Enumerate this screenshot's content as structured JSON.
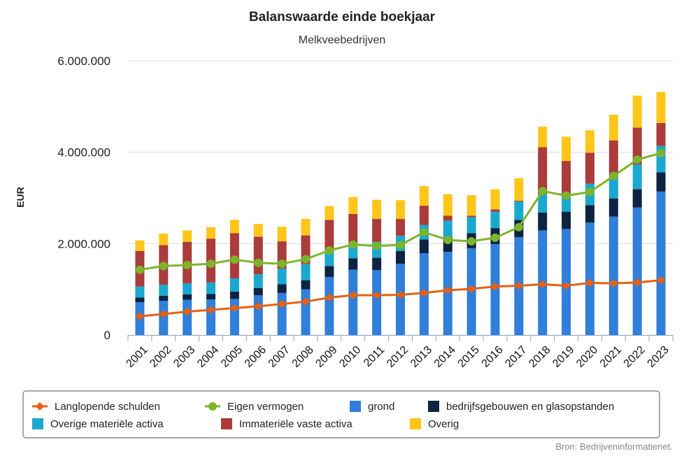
{
  "chart_data": {
    "type": "bar",
    "title": "Balanswaarde einde boekjaar",
    "subtitle": "Melkveebedrijven",
    "ylabel": "EUR",
    "xlabel": "",
    "ylim": [
      0,
      6000000
    ],
    "yticks": [
      0,
      2000000,
      4000000,
      6000000
    ],
    "ytick_labels": [
      "0",
      "2.000.000",
      "4.000.000",
      "6.000.000"
    ],
    "grid": true,
    "legend_position": "bottom",
    "categories": [
      "2001",
      "2002",
      "2003",
      "2004",
      "2005",
      "2006",
      "2007",
      "2008",
      "2009",
      "2010",
      "2011",
      "2012",
      "2013",
      "2014",
      "2015",
      "2016",
      "2017",
      "2018",
      "2019",
      "2020",
      "2021",
      "2022",
      "2023"
    ],
    "stacked_series": [
      {
        "name": "grond",
        "color": "#2f7fdb",
        "values": [
          720000,
          750000,
          770000,
          780000,
          790000,
          870000,
          920000,
          1000000,
          1270000,
          1430000,
          1420000,
          1560000,
          1790000,
          1820000,
          1900000,
          1990000,
          2140000,
          2290000,
          2320000,
          2460000,
          2590000,
          2790000,
          3140000
        ]
      },
      {
        "name": "bedrijfsgebouwen en glasopstanden",
        "color": "#0e2340",
        "values": [
          100000,
          110000,
          120000,
          120000,
          160000,
          160000,
          190000,
          200000,
          240000,
          250000,
          270000,
          280000,
          300000,
          320000,
          330000,
          350000,
          380000,
          390000,
          380000,
          380000,
          400000,
          400000,
          420000
        ]
      },
      {
        "name": "Overige materiële activa",
        "color": "#1aa8cf",
        "values": [
          240000,
          240000,
          240000,
          250000,
          290000,
          300000,
          340000,
          350000,
          330000,
          340000,
          350000,
          330000,
          320000,
          360000,
          350000,
          360000,
          400000,
          400000,
          400000,
          470000,
          460000,
          540000,
          580000
        ]
      },
      {
        "name": "Immateriële vaste activa",
        "color": "#aa3c3c",
        "values": [
          780000,
          870000,
          910000,
          960000,
          990000,
          820000,
          600000,
          630000,
          680000,
          630000,
          500000,
          370000,
          420000,
          110000,
          30000,
          50000,
          20000,
          1030000,
          710000,
          680000,
          810000,
          810000,
          500000
        ]
      },
      {
        "name": "Overig",
        "color": "#ffc61a",
        "values": [
          230000,
          250000,
          250000,
          250000,
          290000,
          280000,
          320000,
          360000,
          300000,
          370000,
          420000,
          410000,
          430000,
          470000,
          450000,
          440000,
          490000,
          450000,
          530000,
          490000,
          560000,
          700000,
          680000
        ]
      }
    ],
    "line_series": [
      {
        "name": "Langlopende schulden",
        "color": "#e8600e",
        "marker": "diamond",
        "values": [
          410000,
          460000,
          510000,
          550000,
          590000,
          630000,
          680000,
          730000,
          820000,
          870000,
          870000,
          880000,
          920000,
          980000,
          1010000,
          1060000,
          1080000,
          1110000,
          1080000,
          1140000,
          1130000,
          1150000,
          1200000
        ]
      },
      {
        "name": "Eigen vermogen",
        "color": "#7db52a",
        "marker": "circle",
        "values": [
          1430000,
          1510000,
          1530000,
          1560000,
          1650000,
          1580000,
          1560000,
          1660000,
          1850000,
          1980000,
          1950000,
          1970000,
          2250000,
          2080000,
          2050000,
          2130000,
          2360000,
          3150000,
          3050000,
          3130000,
          3480000,
          3840000,
          3980000
        ]
      }
    ],
    "legend": [
      {
        "label": "Langlopende schulden",
        "kind": "line-diamond",
        "color": "#e8600e"
      },
      {
        "label": "Eigen vermogen",
        "kind": "line-circle",
        "color": "#7db52a"
      },
      {
        "label": "grond",
        "kind": "square",
        "color": "#2f7fdb"
      },
      {
        "label": "bedrijfsgebouwen en glasopstanden",
        "kind": "square",
        "color": "#0e2340"
      },
      {
        "label": "Overige materiële activa",
        "kind": "square",
        "color": "#1aa8cf"
      },
      {
        "label": "Immateriële vaste activa",
        "kind": "square",
        "color": "#aa3c3c"
      },
      {
        "label": "Overig",
        "kind": "square",
        "color": "#ffc61a"
      }
    ],
    "credit": "Bron: Bedrijveninformatienet."
  }
}
